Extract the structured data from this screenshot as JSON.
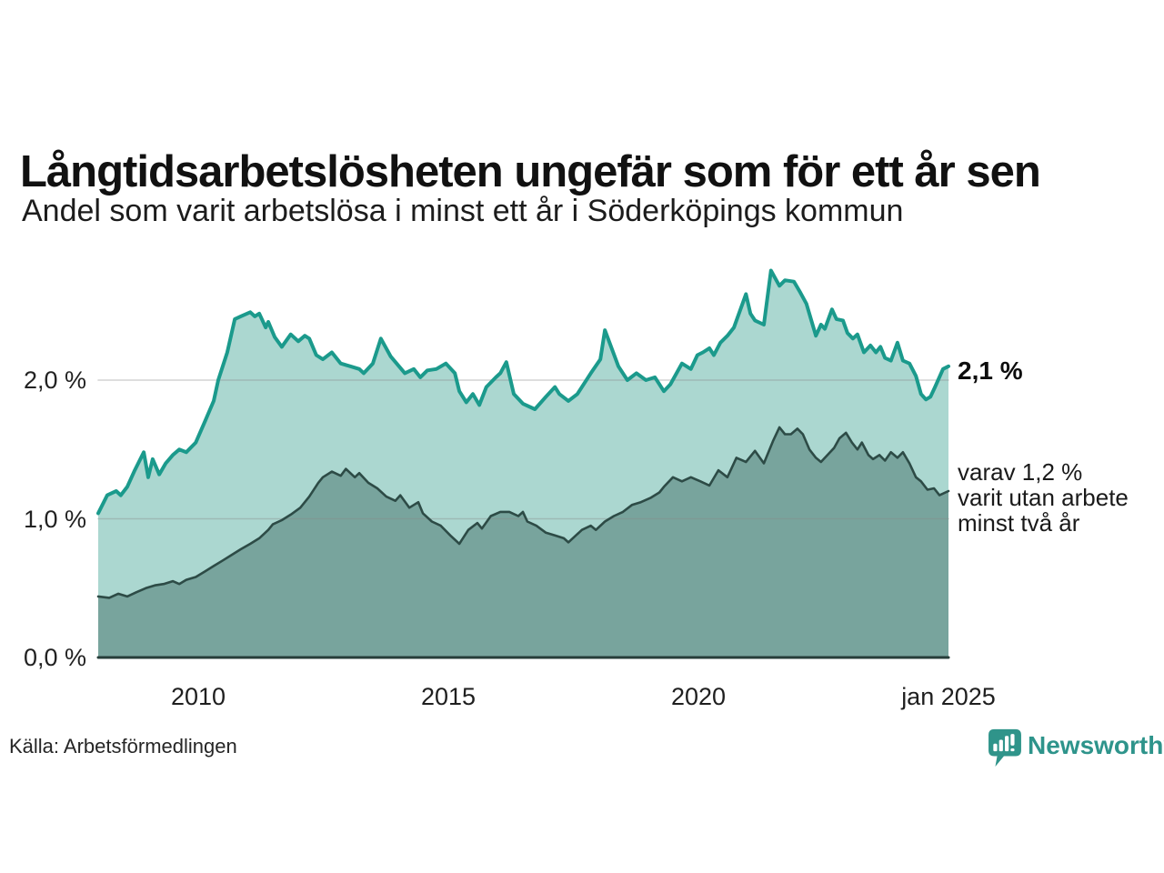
{
  "title": "Långtidsarbetslösheten ungefär som för ett år sen",
  "subtitle": "Andel som varit arbetslösa i minst ett år i Söderköpings kommun",
  "annotations": {
    "total": {
      "text": "2,1 %"
    },
    "breakdown": {
      "lines": [
        "varav 1,2 %",
        "varit utan arbete",
        "minst två år"
      ]
    }
  },
  "footer": {
    "source": "Källa: Arbetsförmedlingen",
    "brand": "Newsworthy"
  },
  "colors": {
    "total_line": "#1b9a8c",
    "total_fill": "#abd7d0",
    "subset_line": "#2d4b46",
    "subset_fill": "#78a49d",
    "grid": "#8a8a8a",
    "axis": "#263d39",
    "brand": "#2e948b"
  },
  "chart_data": {
    "type": "area",
    "title": "Långtidsarbetslösheten ungefär som för ett år sen",
    "subtitle": "Andel som varit arbetslösa i minst ett år i Söderköpings kommun",
    "unit": "%",
    "grid": "horizontal",
    "legend_position": "right-annotations",
    "x_range": [
      2008,
      2025
    ],
    "y_range": [
      0,
      2.9
    ],
    "x_ticks": [
      {
        "label": "2010",
        "year": 2010
      },
      {
        "label": "2015",
        "year": 2015
      },
      {
        "label": "2020",
        "year": 2020
      },
      {
        "label": "jan 2025",
        "year": 2025
      }
    ],
    "y_ticks": [
      {
        "label": "2,0 %",
        "value": 2.0
      },
      {
        "label": "1,0 %",
        "value": 1.0
      },
      {
        "label": "0,0 %",
        "value": 0.0
      }
    ],
    "series": [
      {
        "name": "Arbetslösa minst ett år",
        "end_label": "2,1 %",
        "end_value": 2.1,
        "points": [
          [
            2008.0,
            1.04
          ],
          [
            2008.18,
            1.17
          ],
          [
            2008.36,
            1.2
          ],
          [
            2008.45,
            1.17
          ],
          [
            2008.58,
            1.23
          ],
          [
            2008.73,
            1.35
          ],
          [
            2008.91,
            1.48
          ],
          [
            2009.0,
            1.3
          ],
          [
            2009.09,
            1.43
          ],
          [
            2009.22,
            1.32
          ],
          [
            2009.35,
            1.4
          ],
          [
            2009.49,
            1.46
          ],
          [
            2009.62,
            1.5
          ],
          [
            2009.76,
            1.48
          ],
          [
            2009.95,
            1.55
          ],
          [
            2010.13,
            1.7
          ],
          [
            2010.31,
            1.85
          ],
          [
            2010.4,
            2.0
          ],
          [
            2010.58,
            2.2
          ],
          [
            2010.73,
            2.44
          ],
          [
            2010.85,
            2.46
          ],
          [
            2011.04,
            2.49
          ],
          [
            2011.13,
            2.46
          ],
          [
            2011.22,
            2.48
          ],
          [
            2011.35,
            2.38
          ],
          [
            2011.4,
            2.42
          ],
          [
            2011.53,
            2.31
          ],
          [
            2011.67,
            2.24
          ],
          [
            2011.85,
            2.33
          ],
          [
            2012.0,
            2.28
          ],
          [
            2012.13,
            2.32
          ],
          [
            2012.22,
            2.3
          ],
          [
            2012.36,
            2.18
          ],
          [
            2012.49,
            2.15
          ],
          [
            2012.67,
            2.2
          ],
          [
            2012.85,
            2.12
          ],
          [
            2013.04,
            2.1
          ],
          [
            2013.22,
            2.08
          ],
          [
            2013.31,
            2.05
          ],
          [
            2013.49,
            2.12
          ],
          [
            2013.65,
            2.3
          ],
          [
            2013.85,
            2.17
          ],
          [
            2014.13,
            2.05
          ],
          [
            2014.31,
            2.08
          ],
          [
            2014.44,
            2.02
          ],
          [
            2014.58,
            2.07
          ],
          [
            2014.76,
            2.08
          ],
          [
            2014.95,
            2.12
          ],
          [
            2015.13,
            2.05
          ],
          [
            2015.22,
            1.92
          ],
          [
            2015.36,
            1.84
          ],
          [
            2015.49,
            1.9
          ],
          [
            2015.62,
            1.82
          ],
          [
            2015.76,
            1.95
          ],
          [
            2015.95,
            2.02
          ],
          [
            2016.04,
            2.05
          ],
          [
            2016.16,
            2.13
          ],
          [
            2016.31,
            1.9
          ],
          [
            2016.49,
            1.83
          ],
          [
            2016.73,
            1.79
          ],
          [
            2016.95,
            1.88
          ],
          [
            2017.13,
            1.95
          ],
          [
            2017.22,
            1.9
          ],
          [
            2017.4,
            1.85
          ],
          [
            2017.58,
            1.9
          ],
          [
            2017.85,
            2.05
          ],
          [
            2018.04,
            2.15
          ],
          [
            2018.13,
            2.36
          ],
          [
            2018.4,
            2.1
          ],
          [
            2018.58,
            2.0
          ],
          [
            2018.76,
            2.05
          ],
          [
            2018.95,
            2.0
          ],
          [
            2019.13,
            2.02
          ],
          [
            2019.31,
            1.92
          ],
          [
            2019.44,
            1.97
          ],
          [
            2019.67,
            2.12
          ],
          [
            2019.85,
            2.08
          ],
          [
            2019.98,
            2.18
          ],
          [
            2020.09,
            2.2
          ],
          [
            2020.22,
            2.23
          ],
          [
            2020.31,
            2.18
          ],
          [
            2020.44,
            2.27
          ],
          [
            2020.58,
            2.32
          ],
          [
            2020.71,
            2.38
          ],
          [
            2020.95,
            2.62
          ],
          [
            2021.04,
            2.48
          ],
          [
            2021.13,
            2.43
          ],
          [
            2021.31,
            2.4
          ],
          [
            2021.45,
            2.79
          ],
          [
            2021.62,
            2.68
          ],
          [
            2021.73,
            2.72
          ],
          [
            2021.91,
            2.71
          ],
          [
            2022.04,
            2.63
          ],
          [
            2022.16,
            2.55
          ],
          [
            2022.35,
            2.32
          ],
          [
            2022.45,
            2.4
          ],
          [
            2022.53,
            2.37
          ],
          [
            2022.67,
            2.51
          ],
          [
            2022.76,
            2.44
          ],
          [
            2022.89,
            2.43
          ],
          [
            2022.98,
            2.34
          ],
          [
            2023.09,
            2.3
          ],
          [
            2023.18,
            2.33
          ],
          [
            2023.31,
            2.2
          ],
          [
            2023.44,
            2.25
          ],
          [
            2023.55,
            2.2
          ],
          [
            2023.64,
            2.24
          ],
          [
            2023.73,
            2.16
          ],
          [
            2023.85,
            2.14
          ],
          [
            2023.98,
            2.27
          ],
          [
            2024.09,
            2.14
          ],
          [
            2024.22,
            2.12
          ],
          [
            2024.35,
            2.03
          ],
          [
            2024.45,
            1.9
          ],
          [
            2024.55,
            1.86
          ],
          [
            2024.64,
            1.88
          ],
          [
            2024.73,
            1.95
          ],
          [
            2024.89,
            2.08
          ],
          [
            2025.0,
            2.1
          ]
        ]
      },
      {
        "name": "varav utan arbete minst två år",
        "end_label": "varav 1,2 % varit utan arbete minst två år",
        "end_value": 1.2,
        "points": [
          [
            2008.0,
            0.44
          ],
          [
            2008.22,
            0.43
          ],
          [
            2008.4,
            0.46
          ],
          [
            2008.58,
            0.44
          ],
          [
            2008.76,
            0.47
          ],
          [
            2008.95,
            0.5
          ],
          [
            2009.13,
            0.52
          ],
          [
            2009.31,
            0.53
          ],
          [
            2009.49,
            0.55
          ],
          [
            2009.62,
            0.53
          ],
          [
            2009.76,
            0.56
          ],
          [
            2009.95,
            0.58
          ],
          [
            2010.13,
            0.62
          ],
          [
            2010.31,
            0.66
          ],
          [
            2010.49,
            0.7
          ],
          [
            2010.67,
            0.74
          ],
          [
            2010.85,
            0.78
          ],
          [
            2011.04,
            0.82
          ],
          [
            2011.22,
            0.86
          ],
          [
            2011.4,
            0.92
          ],
          [
            2011.49,
            0.96
          ],
          [
            2011.67,
            0.99
          ],
          [
            2011.85,
            1.03
          ],
          [
            2012.04,
            1.08
          ],
          [
            2012.22,
            1.16
          ],
          [
            2012.4,
            1.26
          ],
          [
            2012.49,
            1.3
          ],
          [
            2012.67,
            1.34
          ],
          [
            2012.85,
            1.31
          ],
          [
            2012.95,
            1.36
          ],
          [
            2013.13,
            1.3
          ],
          [
            2013.22,
            1.33
          ],
          [
            2013.4,
            1.26
          ],
          [
            2013.58,
            1.22
          ],
          [
            2013.76,
            1.16
          ],
          [
            2013.94,
            1.13
          ],
          [
            2014.04,
            1.17
          ],
          [
            2014.22,
            1.08
          ],
          [
            2014.4,
            1.12
          ],
          [
            2014.49,
            1.04
          ],
          [
            2014.67,
            0.98
          ],
          [
            2014.85,
            0.95
          ],
          [
            2015.04,
            0.88
          ],
          [
            2015.22,
            0.82
          ],
          [
            2015.4,
            0.92
          ],
          [
            2015.58,
            0.97
          ],
          [
            2015.67,
            0.93
          ],
          [
            2015.85,
            1.02
          ],
          [
            2016.04,
            1.05
          ],
          [
            2016.22,
            1.05
          ],
          [
            2016.4,
            1.02
          ],
          [
            2016.49,
            1.05
          ],
          [
            2016.58,
            0.98
          ],
          [
            2016.76,
            0.95
          ],
          [
            2016.95,
            0.9
          ],
          [
            2017.13,
            0.88
          ],
          [
            2017.31,
            0.86
          ],
          [
            2017.4,
            0.83
          ],
          [
            2017.67,
            0.92
          ],
          [
            2017.85,
            0.95
          ],
          [
            2017.95,
            0.92
          ],
          [
            2018.13,
            0.98
          ],
          [
            2018.31,
            1.02
          ],
          [
            2018.49,
            1.05
          ],
          [
            2018.67,
            1.1
          ],
          [
            2018.85,
            1.12
          ],
          [
            2019.04,
            1.15
          ],
          [
            2019.22,
            1.19
          ],
          [
            2019.31,
            1.23
          ],
          [
            2019.49,
            1.3
          ],
          [
            2019.67,
            1.27
          ],
          [
            2019.85,
            1.3
          ],
          [
            2020.04,
            1.27
          ],
          [
            2020.22,
            1.24
          ],
          [
            2020.4,
            1.35
          ],
          [
            2020.58,
            1.3
          ],
          [
            2020.76,
            1.44
          ],
          [
            2020.95,
            1.41
          ],
          [
            2021.13,
            1.49
          ],
          [
            2021.31,
            1.4
          ],
          [
            2021.49,
            1.56
          ],
          [
            2021.62,
            1.66
          ],
          [
            2021.73,
            1.61
          ],
          [
            2021.85,
            1.61
          ],
          [
            2021.98,
            1.65
          ],
          [
            2022.09,
            1.61
          ],
          [
            2022.22,
            1.5
          ],
          [
            2022.35,
            1.44
          ],
          [
            2022.45,
            1.41
          ],
          [
            2022.58,
            1.46
          ],
          [
            2022.71,
            1.51
          ],
          [
            2022.82,
            1.58
          ],
          [
            2022.95,
            1.62
          ],
          [
            2023.07,
            1.55
          ],
          [
            2023.18,
            1.5
          ],
          [
            2023.27,
            1.55
          ],
          [
            2023.4,
            1.46
          ],
          [
            2023.49,
            1.43
          ],
          [
            2023.62,
            1.46
          ],
          [
            2023.73,
            1.42
          ],
          [
            2023.85,
            1.48
          ],
          [
            2023.98,
            1.44
          ],
          [
            2024.09,
            1.48
          ],
          [
            2024.22,
            1.4
          ],
          [
            2024.35,
            1.3
          ],
          [
            2024.45,
            1.27
          ],
          [
            2024.58,
            1.21
          ],
          [
            2024.71,
            1.22
          ],
          [
            2024.82,
            1.17
          ],
          [
            2025.0,
            1.2
          ]
        ]
      }
    ]
  }
}
